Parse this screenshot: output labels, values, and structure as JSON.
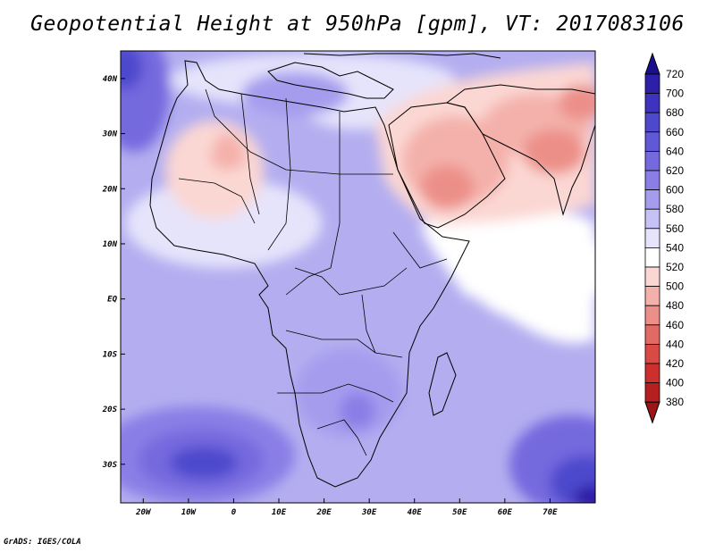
{
  "title": "Geopotential Height at 950hPa [gpm], VT: 2017083106",
  "credit": "GrADS: IGES/COLA",
  "map": {
    "lon_range": [
      -25,
      80
    ],
    "lat_range": [
      -37,
      45
    ],
    "lat_ticks": [
      {
        "label": "40N",
        "lat": 40
      },
      {
        "label": "30N",
        "lat": 30
      },
      {
        "label": "20N",
        "lat": 20
      },
      {
        "label": "10N",
        "lat": 10
      },
      {
        "label": "EQ",
        "lat": 0
      },
      {
        "label": "10S",
        "lat": -10
      },
      {
        "label": "20S",
        "lat": -20
      },
      {
        "label": "30S",
        "lat": -30
      }
    ],
    "lon_ticks": [
      {
        "label": "20W",
        "lon": -20
      },
      {
        "label": "10W",
        "lon": -10
      },
      {
        "label": "0",
        "lon": 0
      },
      {
        "label": "10E",
        "lon": 10
      },
      {
        "label": "20E",
        "lon": 20
      },
      {
        "label": "30E",
        "lon": 30
      },
      {
        "label": "40E",
        "lon": 40
      },
      {
        "label": "50E",
        "lon": 50
      },
      {
        "label": "60E",
        "lon": 60
      },
      {
        "label": "70E",
        "lon": 70
      }
    ]
  },
  "colorbar": {
    "levels": [
      720,
      700,
      680,
      660,
      640,
      620,
      600,
      580,
      560,
      540,
      520,
      500,
      480,
      460,
      440,
      420,
      400,
      380
    ],
    "colors": [
      "#1a0f8c",
      "#2d1fa8",
      "#3d33bf",
      "#4d48cc",
      "#6058d6",
      "#7569de",
      "#8a7ee6",
      "#a69cee",
      "#c7c2f5",
      "#e6e4fb",
      "#ffffff",
      "#fbd7d3",
      "#f4b1ab",
      "#ec8f88",
      "#e36a64",
      "#da4a45",
      "#cc2f2c",
      "#b51f1f",
      "#9c1414"
    ]
  }
}
